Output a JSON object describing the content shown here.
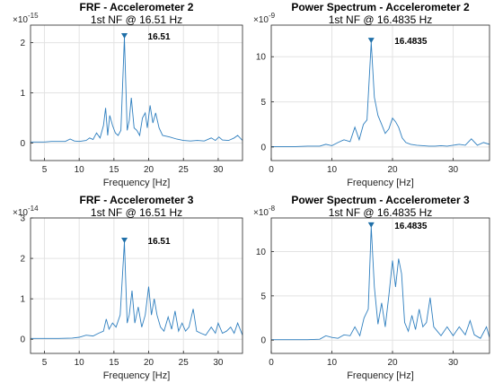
{
  "colors": {
    "line": "#2f7fbf",
    "marker": "#1f6fa8",
    "grid": "#e3e3e3",
    "axis": "#262626"
  },
  "chart_data": [
    {
      "type": "line",
      "title": "FRF - Accelerometer 2",
      "subtitle": "1st NF @ 16.51 Hz",
      "xlabel": "Frequency [Hz]",
      "ylabel": "",
      "y_exponent": "10",
      "y_exponent_power": "-15",
      "xlim": [
        3,
        33.5
      ],
      "ylim": [
        -0.35,
        2.35
      ],
      "xticks": [
        "5",
        "10",
        "15",
        "20",
        "25",
        "30"
      ],
      "xtick_values": [
        5,
        10,
        15,
        20,
        25,
        30
      ],
      "yticks": [
        "0",
        "1",
        "2"
      ],
      "ytick_values": [
        0,
        1,
        2
      ],
      "grid": true,
      "peak": {
        "x": 16.51,
        "y": 2.1,
        "label": "16.51"
      },
      "series": [
        {
          "x": [
            3,
            5,
            6,
            7,
            8,
            8.7,
            9.3,
            10,
            11,
            11.5,
            12,
            12.5,
            13,
            13.5,
            13.8,
            14.1,
            14.4,
            14.8,
            15.2,
            15.6,
            16.0,
            16.51,
            16.9,
            17.2,
            17.5,
            17.9,
            18.3,
            18.7,
            19.1,
            19.5,
            19.8,
            20.2,
            20.6,
            21.0,
            21.5,
            22.0,
            23.0,
            24.0,
            25.0,
            26.0,
            27.0,
            28.0,
            29.0,
            29.6,
            30.1,
            30.6,
            31.5,
            32.3,
            32.8,
            33.5
          ],
          "y": [
            0.02,
            0.02,
            0.03,
            0.03,
            0.03,
            0.08,
            0.04,
            0.03,
            0.05,
            0.1,
            0.07,
            0.2,
            0.1,
            0.35,
            0.7,
            0.15,
            0.55,
            0.35,
            0.2,
            0.15,
            0.25,
            2.1,
            0.25,
            0.45,
            0.9,
            0.3,
            0.25,
            0.15,
            0.5,
            0.6,
            0.3,
            0.75,
            0.4,
            0.6,
            0.3,
            0.15,
            0.12,
            0.08,
            0.05,
            0.04,
            0.05,
            0.04,
            0.1,
            0.05,
            0.12,
            0.06,
            0.05,
            0.1,
            0.15,
            0.05
          ]
        }
      ]
    },
    {
      "type": "line",
      "title": "Power Spectrum - Accelerometer 2",
      "subtitle": "1st NF @ 16.4835 Hz",
      "xlabel": "Frequency [Hz]",
      "ylabel": "",
      "y_exponent": "10",
      "y_exponent_power": "-9",
      "xlim": [
        0,
        36
      ],
      "ylim": [
        -1.5,
        13.5
      ],
      "xticks": [
        "0",
        "10",
        "20",
        "30"
      ],
      "xtick_values": [
        0,
        10,
        20,
        30
      ],
      "yticks": [
        "0",
        "5",
        "10"
      ],
      "ytick_values": [
        0,
        5,
        10
      ],
      "grid": true,
      "peak": {
        "x": 16.4835,
        "y": 11.6,
        "label": "16.4835"
      },
      "series": [
        {
          "x": [
            0,
            2,
            4,
            6,
            8,
            9,
            10,
            11,
            12,
            13,
            13.8,
            14.5,
            15.2,
            15.8,
            16.4835,
            17.0,
            17.6,
            18.2,
            18.8,
            19.4,
            20.0,
            20.5,
            21.0,
            21.6,
            22.2,
            23,
            24,
            25,
            26,
            27,
            28,
            29,
            30,
            31,
            32,
            33,
            34,
            35,
            36
          ],
          "y": [
            0.05,
            0.05,
            0.05,
            0.1,
            0.1,
            0.3,
            0.15,
            0.5,
            0.8,
            0.6,
            2.2,
            0.8,
            2.5,
            3.0,
            11.6,
            5.5,
            3.5,
            2.5,
            1.5,
            2.0,
            3.2,
            2.8,
            2.2,
            1.0,
            0.5,
            0.3,
            0.2,
            0.15,
            0.1,
            0.1,
            0.15,
            0.1,
            0.2,
            0.3,
            0.2,
            0.9,
            0.2,
            0.5,
            0.3
          ]
        }
      ]
    },
    {
      "type": "line",
      "title": "FRF - Accelerometer 3",
      "subtitle": "1st NF @ 16.51 Hz",
      "xlabel": "Frequency [Hz]",
      "ylabel": "",
      "y_exponent": "10",
      "y_exponent_power": "-14",
      "xlim": [
        3,
        33.5
      ],
      "ylim": [
        -0.35,
        3.0
      ],
      "xticks": [
        "5",
        "10",
        "15",
        "20",
        "25",
        "30"
      ],
      "xtick_values": [
        5,
        10,
        15,
        20,
        25,
        30
      ],
      "yticks": [
        "0",
        "1",
        "2",
        "3"
      ],
      "ytick_values": [
        0,
        1,
        2,
        3
      ],
      "grid": true,
      "peak": {
        "x": 16.51,
        "y": 2.4,
        "label": "16.51"
      },
      "series": [
        {
          "x": [
            3,
            5,
            7,
            9,
            10,
            11,
            12,
            12.8,
            13.5,
            13.9,
            14.3,
            14.8,
            15.3,
            15.9,
            16.51,
            16.9,
            17.2,
            17.6,
            18.0,
            18.5,
            19.0,
            19.5,
            20.0,
            20.4,
            20.8,
            21.2,
            21.7,
            22.2,
            22.8,
            23.3,
            23.8,
            24.3,
            24.8,
            25.3,
            25.8,
            26.4,
            26.9,
            27.5,
            28.2,
            29.0,
            29.6,
            30.0,
            30.6,
            31.2,
            31.8,
            32.3,
            32.8,
            33.5
          ],
          "y": [
            0.02,
            0.02,
            0.02,
            0.03,
            0.05,
            0.1,
            0.08,
            0.15,
            0.2,
            0.5,
            0.25,
            0.4,
            0.3,
            0.6,
            2.4,
            0.4,
            0.6,
            1.2,
            0.4,
            0.8,
            0.3,
            0.6,
            1.3,
            0.6,
            1.0,
            0.6,
            0.3,
            0.2,
            0.55,
            0.25,
            0.7,
            0.2,
            0.4,
            0.2,
            0.3,
            0.75,
            0.2,
            0.15,
            0.1,
            0.3,
            0.15,
            0.4,
            0.15,
            0.2,
            0.3,
            0.15,
            0.4,
            0.1
          ]
        }
      ]
    },
    {
      "type": "line",
      "title": "Power Spectrum - Accelerometer 3",
      "subtitle": "1st NF @ 16.4835 Hz",
      "xlabel": "Frequency [Hz]",
      "ylabel": "",
      "y_exponent": "10",
      "y_exponent_power": "-8",
      "xlim": [
        0,
        36
      ],
      "ylim": [
        -1.5,
        13.8
      ],
      "xticks": [
        "0",
        "10",
        "20",
        "30"
      ],
      "xtick_values": [
        0,
        10,
        20,
        30
      ],
      "yticks": [
        "0",
        "5",
        "10"
      ],
      "ytick_values": [
        0,
        5,
        10
      ],
      "grid": true,
      "peak": {
        "x": 16.4835,
        "y": 12.8,
        "label": "16.4835"
      },
      "series": [
        {
          "x": [
            0,
            3,
            6,
            8,
            9,
            10,
            11,
            12,
            13,
            13.8,
            14.6,
            15.3,
            16.0,
            16.4835,
            17.0,
            17.6,
            18.2,
            18.8,
            19.4,
            20.0,
            20.5,
            21.0,
            21.5,
            22.0,
            22.6,
            23.2,
            23.8,
            24.4,
            25.0,
            25.6,
            26.2,
            26.8,
            27.4,
            28.0,
            29.0,
            30,
            31,
            32,
            32.8,
            33.5,
            34.5,
            35.5,
            36
          ],
          "y": [
            0.05,
            0.05,
            0.05,
            0.1,
            0.5,
            0.3,
            0.2,
            0.6,
            0.5,
            1.5,
            0.5,
            2.5,
            3.5,
            12.8,
            6.0,
            1.8,
            4.2,
            1.5,
            5.0,
            9.0,
            6.0,
            9.2,
            7.5,
            2.0,
            1.0,
            2.8,
            1.2,
            3.5,
            1.5,
            2.0,
            4.8,
            1.5,
            1.0,
            0.5,
            1.5,
            0.5,
            1.5,
            0.6,
            2.2,
            0.6,
            0.2,
            1.5,
            0.3
          ]
        }
      ]
    }
  ]
}
